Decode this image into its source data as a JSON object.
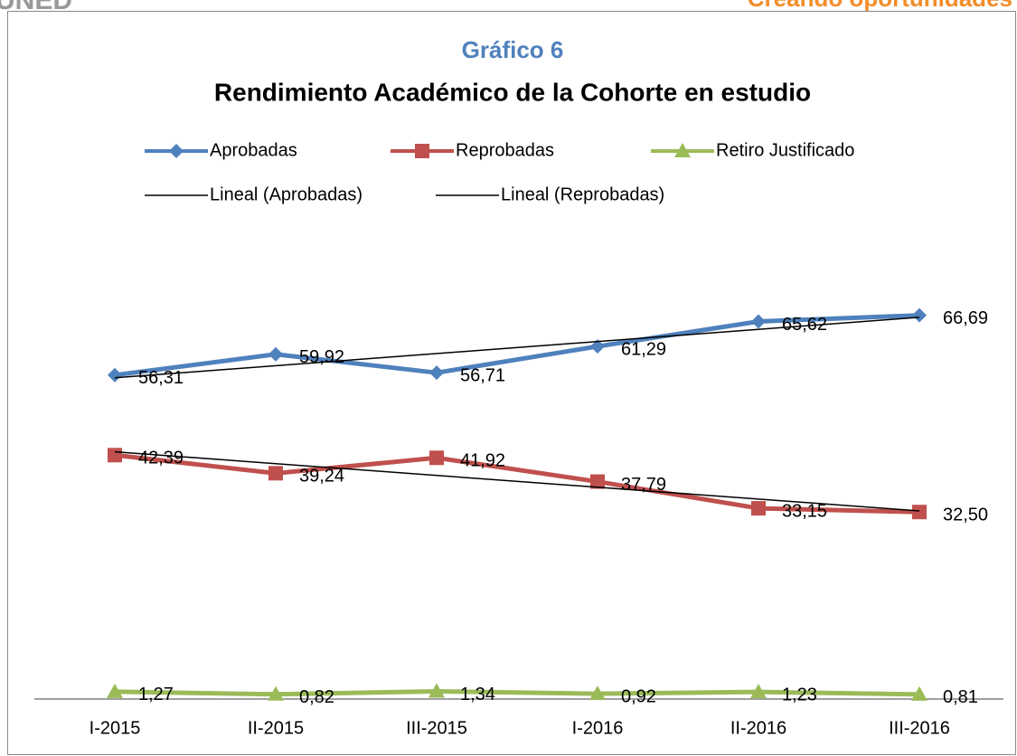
{
  "logo": "UNED",
  "slogan": "Creando oportunidades",
  "chart_data": {
    "type": "line",
    "title": "Gráfico 6",
    "subtitle": "Rendimiento Académico de la Cohorte en estudio",
    "categories": [
      "I-2015",
      "II-2015",
      "III-2015",
      "I-2016",
      "II-2016",
      "III-2016"
    ],
    "ylim": [
      0,
      80
    ],
    "series": [
      {
        "name": "Aprobadas",
        "color": "#4f81bd",
        "marker": "diamond",
        "trendline": "Lineal (Aprobadas)",
        "values": [
          56.31,
          59.92,
          56.71,
          61.29,
          65.62,
          66.69
        ],
        "value_labels": [
          "56,31",
          "59,92",
          "56,71",
          "61,29",
          "65,62",
          "66,69"
        ]
      },
      {
        "name": "Reprobadas",
        "color": "#c0504d",
        "marker": "square",
        "trendline": "Lineal (Reprobadas)",
        "values": [
          42.39,
          39.24,
          41.92,
          37.79,
          33.15,
          32.5
        ],
        "value_labels": [
          "42,39",
          "39,24",
          "41,92",
          "37,79",
          "33,15",
          "32,50"
        ]
      },
      {
        "name": "Retiro Justificado",
        "color": "#9bbb59",
        "marker": "triangle",
        "values": [
          1.27,
          0.82,
          1.34,
          0.92,
          1.23,
          0.81
        ],
        "value_labels": [
          "1,27",
          "0,82",
          "1,34",
          "0,92",
          "1,23",
          "0,81"
        ]
      }
    ]
  }
}
